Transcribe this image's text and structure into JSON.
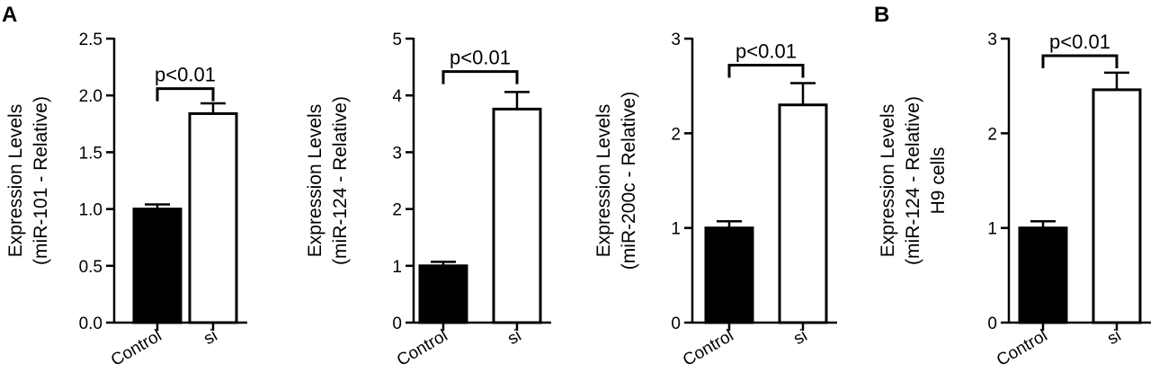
{
  "panel_labels": [
    "A",
    "B"
  ],
  "chart_data": [
    {
      "type": "bar",
      "panel": "A",
      "categories": [
        "Control",
        "si"
      ],
      "values": [
        1.0,
        1.84
      ],
      "errors": [
        0.04,
        0.09
      ],
      "bar_fills": [
        "#000000",
        "#ffffff"
      ],
      "ylabel": [
        "Expression Levels",
        "(miR-101  - Relative)"
      ],
      "ylim": [
        0,
        2.5
      ],
      "yticks": [
        0.0,
        0.5,
        1.0,
        1.5,
        2.0,
        2.5
      ],
      "ytick_labels": [
        "0.0",
        "0.5",
        "1.0",
        "1.5",
        "2.0",
        "2.5"
      ],
      "annotation": "p<0.01",
      "bracket_y": 2.06
    },
    {
      "type": "bar",
      "panel": "A",
      "categories": [
        "Control",
        "si"
      ],
      "values": [
        1.0,
        3.76
      ],
      "errors": [
        0.07,
        0.3
      ],
      "bar_fills": [
        "#000000",
        "#ffffff"
      ],
      "ylabel": [
        "Expression Levels",
        "(miR-124  - Relative)"
      ],
      "ylim": [
        0,
        5
      ],
      "yticks": [
        0,
        1,
        2,
        3,
        4,
        5
      ],
      "ytick_labels": [
        "0",
        "1",
        "2",
        "3",
        "4",
        "5"
      ],
      "annotation": "p<0.01",
      "bracket_y": 4.42
    },
    {
      "type": "bar",
      "panel": "A",
      "categories": [
        "Control",
        "si"
      ],
      "values": [
        1.0,
        2.3
      ],
      "errors": [
        0.07,
        0.23
      ],
      "bar_fills": [
        "#000000",
        "#ffffff"
      ],
      "ylabel": [
        "Expression Levels",
        "(miR-200c  - Relative)"
      ],
      "ylim": [
        0,
        3
      ],
      "yticks": [
        0,
        1,
        2,
        3
      ],
      "ytick_labels": [
        "0",
        "1",
        "2",
        "3"
      ],
      "annotation": "p<0.01",
      "bracket_y": 2.72
    },
    {
      "type": "bar",
      "panel": "B",
      "categories": [
        "Control",
        "si"
      ],
      "values": [
        1.0,
        2.46
      ],
      "errors": [
        0.07,
        0.18
      ],
      "bar_fills": [
        "#000000",
        "#ffffff"
      ],
      "ylabel": [
        "Expression Levels",
        "(miR-124  - Relative)",
        "H9 cells"
      ],
      "ylim": [
        0,
        3
      ],
      "yticks": [
        0,
        1,
        2,
        3
      ],
      "ytick_labels": [
        "0",
        "1",
        "2",
        "3"
      ],
      "annotation": "p<0.01",
      "bracket_y": 2.82
    }
  ]
}
